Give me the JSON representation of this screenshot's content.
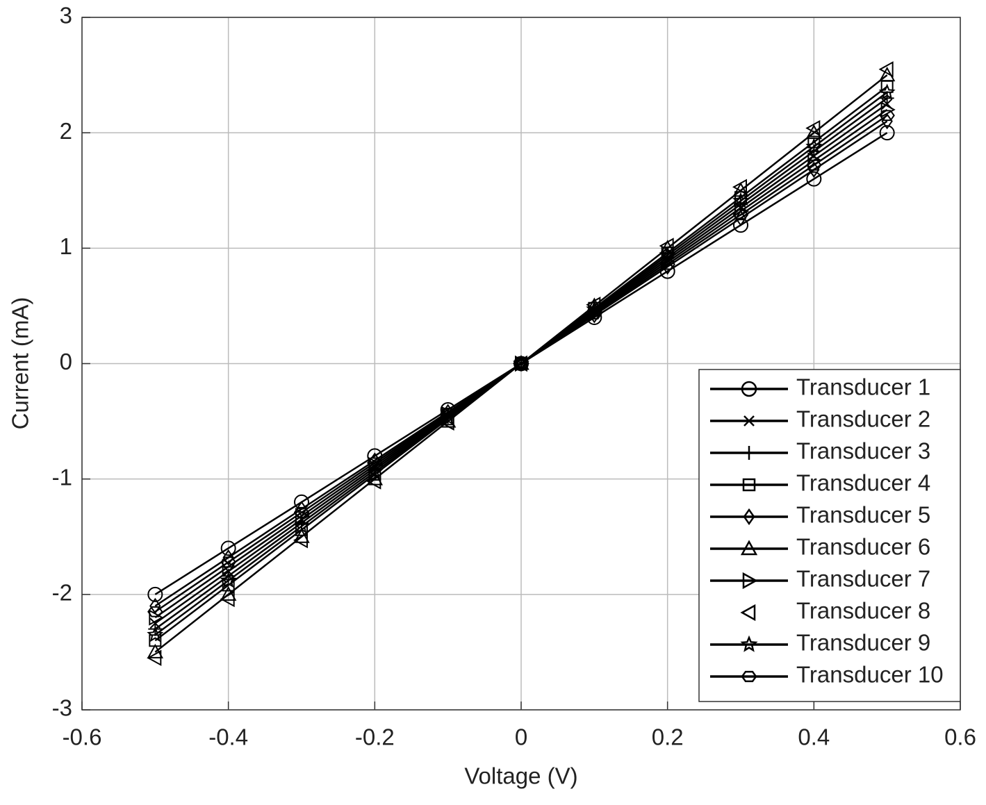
{
  "chart_data": {
    "type": "line",
    "xlabel": "Voltage (V)",
    "ylabel": "Current (mA)",
    "x": [
      -0.5,
      -0.4,
      -0.3,
      -0.2,
      -0.1,
      0,
      0.1,
      0.2,
      0.3,
      0.4,
      0.5
    ],
    "series": [
      {
        "name": "Transducer 1",
        "color": "#000000",
        "marker": "circle",
        "line": true,
        "values": [
          -2,
          -1.6,
          -1.2,
          -0.8,
          -0.4,
          0,
          0.4,
          0.8,
          1.2,
          1.6,
          2
        ]
      },
      {
        "name": "Transducer 2",
        "color": "#000000",
        "marker": "x",
        "line": true,
        "values": [
          -2.25,
          -1.8,
          -1.35,
          -0.9,
          -0.45,
          0,
          0.45,
          0.9,
          1.35,
          1.8,
          2.25
        ]
      },
      {
        "name": "Transducer 3",
        "color": "#000000",
        "marker": "plus",
        "line": true,
        "values": [
          -2.3,
          -1.84,
          -1.38,
          -0.92,
          -0.46,
          0,
          0.46,
          0.92,
          1.38,
          1.84,
          2.3
        ]
      },
      {
        "name": "Transducer 4",
        "color": "#000000",
        "marker": "square",
        "line": true,
        "values": [
          -2.4,
          -1.92,
          -1.44,
          -0.96,
          -0.48,
          0,
          0.48,
          0.96,
          1.44,
          1.92,
          2.4
        ]
      },
      {
        "name": "Transducer 5",
        "color": "#000000",
        "marker": "diamond",
        "line": true,
        "values": [
          -2.1,
          -1.68,
          -1.26,
          -0.84,
          -0.42,
          0,
          0.42,
          0.84,
          1.26,
          1.68,
          2.1
        ]
      },
      {
        "name": "Transducer 6",
        "color": "#000000",
        "marker": "triangle-up",
        "line": true,
        "values": [
          -2.5,
          -2,
          -1.5,
          -1,
          -0.5,
          0,
          0.5,
          1,
          1.5,
          2,
          2.5
        ]
      },
      {
        "name": "Transducer 7",
        "color": "#000000",
        "marker": "triangle-right",
        "line": true,
        "values": [
          -2.2,
          -1.76,
          -1.32,
          -0.88,
          -0.44,
          0,
          0.44,
          0.88,
          1.32,
          1.76,
          2.2
        ]
      },
      {
        "name": "Transducer 8",
        "color": "#000000",
        "marker": "triangle-left",
        "line": false,
        "values": [
          -2.55,
          -2.04,
          -1.53,
          -1.02,
          -0.51,
          0,
          0.51,
          1.02,
          1.53,
          2.04,
          2.55
        ]
      },
      {
        "name": "Transducer 9",
        "color": "#000000",
        "marker": "star",
        "line": true,
        "values": [
          -2.35,
          -1.88,
          -1.41,
          -0.94,
          -0.47,
          0,
          0.47,
          0.94,
          1.41,
          1.88,
          2.35
        ]
      },
      {
        "name": "Transducer 10",
        "color": "#000000",
        "marker": "hexagon",
        "line": true,
        "values": [
          -2.15,
          -1.72,
          -1.29,
          -0.86,
          -0.43,
          0,
          0.43,
          0.86,
          1.29,
          1.72,
          2.15
        ]
      }
    ],
    "xlim": [
      -0.6,
      0.6
    ],
    "xticks": [
      -0.6,
      -0.4,
      -0.2,
      0,
      0.2,
      0.4,
      0.6
    ],
    "ylim": [
      -3,
      3
    ],
    "yticks": [
      -3,
      -2,
      -1,
      0,
      1,
      2,
      3
    ],
    "grid": true,
    "legend": "lower right"
  }
}
